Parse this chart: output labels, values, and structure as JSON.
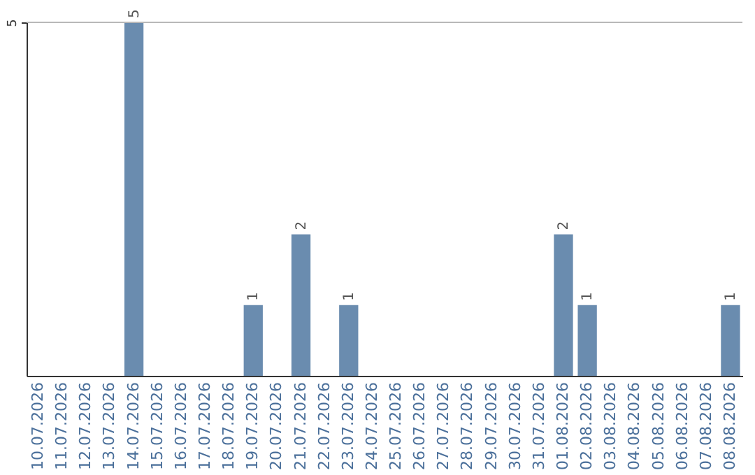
{
  "chart_data": {
    "type": "bar",
    "categories": [
      "10.07.2026",
      "11.07.2026",
      "12.07.2026",
      "13.07.2026",
      "14.07.2026",
      "15.07.2026",
      "16.07.2026",
      "17.07.2026",
      "18.07.2026",
      "19.07.2026",
      "20.07.2026",
      "21.07.2026",
      "22.07.2026",
      "23.07.2026",
      "24.07.2026",
      "25.07.2026",
      "26.07.2026",
      "27.07.2026",
      "28.07.2026",
      "29.07.2026",
      "30.07.2026",
      "31.07.2026",
      "01.08.2026",
      "02.08.2026",
      "03.08.2026",
      "04.08.2026",
      "05.08.2026",
      "06.08.2026",
      "07.08.2026",
      "08.08.2026"
    ],
    "values": [
      0,
      0,
      0,
      0,
      5,
      0,
      0,
      0,
      0,
      1,
      0,
      2,
      0,
      1,
      0,
      0,
      0,
      0,
      0,
      0,
      0,
      0,
      2,
      1,
      0,
      0,
      0,
      0,
      0,
      1
    ],
    "value_labels": [
      null,
      null,
      null,
      null,
      "5",
      null,
      null,
      null,
      null,
      "1",
      null,
      "2",
      null,
      "1",
      null,
      null,
      null,
      null,
      null,
      null,
      null,
      null,
      "2",
      "1",
      null,
      null,
      null,
      null,
      null,
      "1"
    ],
    "color": "#6a8caf",
    "ylim": [
      0,
      5
    ],
    "yticks": [
      5
    ]
  }
}
